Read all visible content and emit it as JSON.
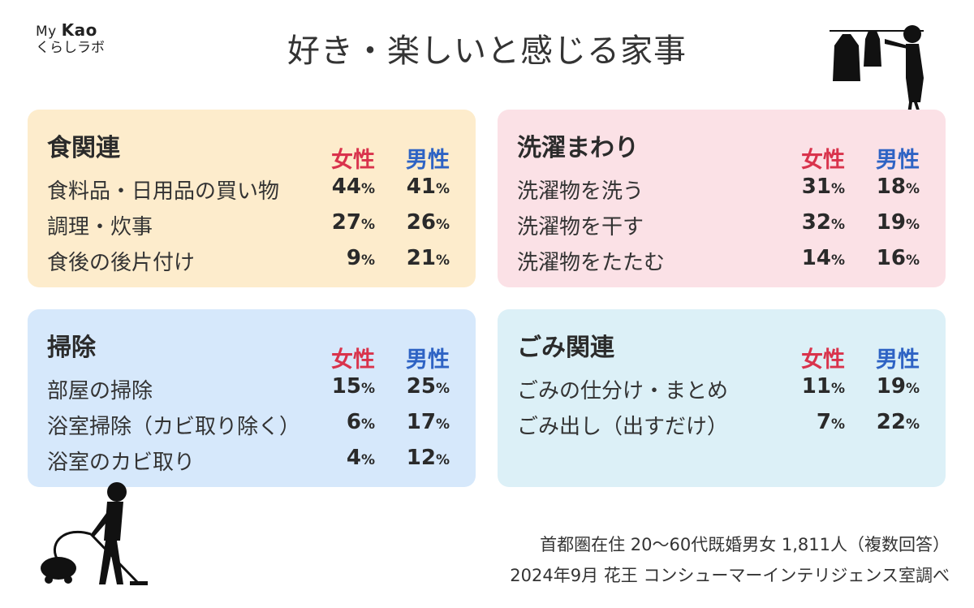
{
  "logo": {
    "line1_prefix": "My",
    "line1_brand": "Kao",
    "line2": "くらしラボ"
  },
  "title": "好き・楽しいと感じる家事",
  "chart_data": {
    "type": "table",
    "title": "好き・楽しいと感じる家事",
    "columns": [
      "女性",
      "男性"
    ],
    "unit": "%",
    "groups": [
      {
        "name": "食関連",
        "rows": [
          {
            "label": "食料品・日用品の買い物",
            "female": 44,
            "male": 41
          },
          {
            "label": "調理・炊事",
            "female": 27,
            "male": 26
          },
          {
            "label": "食後の後片付け",
            "female": 9,
            "male": 21
          }
        ]
      },
      {
        "name": "洗濯まわり",
        "rows": [
          {
            "label": "洗濯物を洗う",
            "female": 31,
            "male": 18
          },
          {
            "label": "洗濯物を干す",
            "female": 32,
            "male": 19
          },
          {
            "label": "洗濯物をたたむ",
            "female": 14,
            "male": 16
          }
        ]
      },
      {
        "name": "掃除",
        "rows": [
          {
            "label": "部屋の掃除",
            "female": 15,
            "male": 25
          },
          {
            "label": "浴室掃除（カビ取り除く）",
            "female": 6,
            "male": 17
          },
          {
            "label": "浴室のカビ取り",
            "female": 4,
            "male": 12
          }
        ]
      },
      {
        "name": "ごみ関連",
        "rows": [
          {
            "label": "ごみの仕分け・まとめ",
            "female": 11,
            "male": 19
          },
          {
            "label": "ごみ出し（出すだけ）",
            "female": 7,
            "male": 22
          }
        ]
      }
    ]
  },
  "footer": {
    "line1": "首都圏在住 20〜60代既婚男女 1,811人（複数回答）",
    "line2": "2024年9月 花王 コンシューマーインテリジェンス室調べ"
  },
  "colors": {
    "female": "#d9334c",
    "male": "#2e63c4",
    "food_bg": "#fdeccc",
    "laundry_bg": "#fbe1e6",
    "clean_bg": "#d6e8fb",
    "trash_bg": "#dcf0f7"
  }
}
